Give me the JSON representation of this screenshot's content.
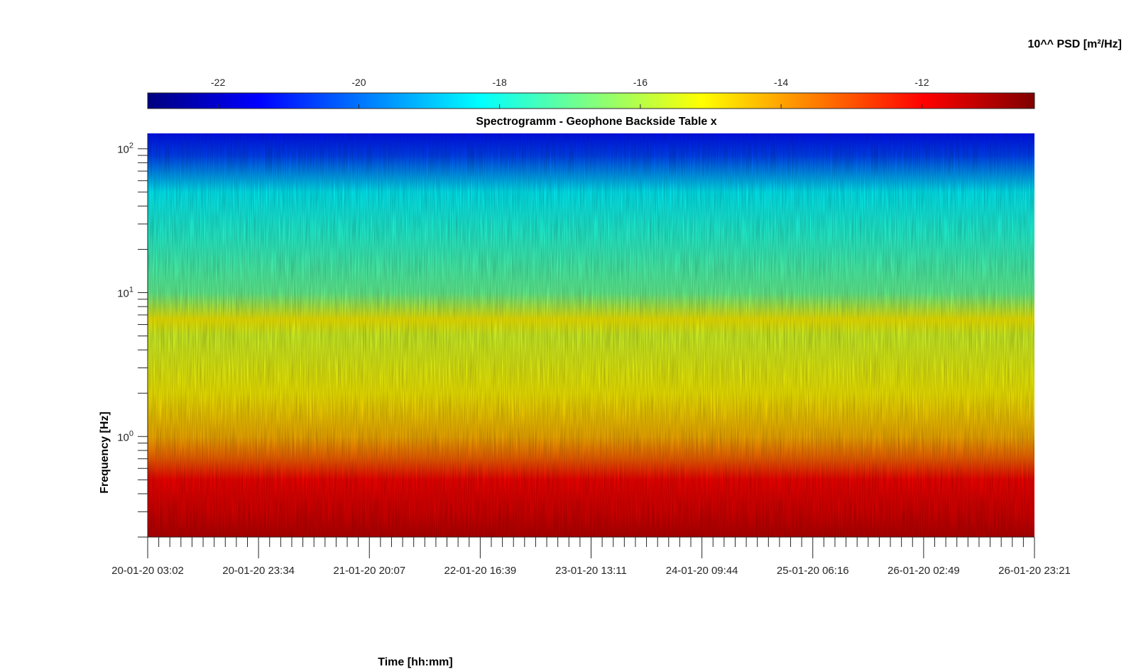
{
  "chart_data": {
    "type": "heatmap",
    "title": "Spectrogramm - Geophone Backside Table x",
    "xlabel": "Time [hh:mm]",
    "ylabel": "Frequency [Hz]",
    "x_tick_labels": [
      "20-01-20 03:02",
      "20-01-20 23:34",
      "21-01-20 20:07",
      "22-01-20 16:39",
      "23-01-20 13:11",
      "24-01-20 09:44",
      "25-01-20 06:16",
      "26-01-20 02:49",
      "26-01-20 23:21"
    ],
    "xlim": [
      "20-01-20 03:02",
      "26-01-20 23:21"
    ],
    "y_scale": "log",
    "ylim": [
      0.2,
      128
    ],
    "y_ticks": [
      {
        "base": "10",
        "exp": "0",
        "value": 1
      },
      {
        "base": "10",
        "exp": "1",
        "value": 10
      },
      {
        "base": "10",
        "exp": "2",
        "value": 100
      }
    ],
    "colorbar": {
      "label": "10^^ PSD [m²/Hz]",
      "colormap": "jet",
      "range": [
        -23,
        -10.4
      ],
      "tick_values": [
        -22,
        -20,
        -18,
        -16,
        -14,
        -12
      ],
      "tick_labels": [
        "-22",
        "-20",
        "-18",
        "-16",
        "-14",
        "-12"
      ],
      "location": "top"
    },
    "heat_profile": [
      {
        "freq": 0.2,
        "value": -11.2
      },
      {
        "freq": 0.3,
        "value": -11.6
      },
      {
        "freq": 0.5,
        "value": -12.0
      },
      {
        "freq": 0.7,
        "value": -13.2
      },
      {
        "freq": 1.0,
        "value": -14.2
      },
      {
        "freq": 2.0,
        "value": -15.0
      },
      {
        "freq": 5.0,
        "value": -15.6
      },
      {
        "freq": 6.5,
        "value": -15.0
      },
      {
        "freq": 10,
        "value": -17.0
      },
      {
        "freq": 25,
        "value": -17.8
      },
      {
        "freq": 50,
        "value": -18.4
      },
      {
        "freq": 90,
        "value": -20.6
      },
      {
        "freq": 128,
        "value": -21.2
      }
    ]
  }
}
